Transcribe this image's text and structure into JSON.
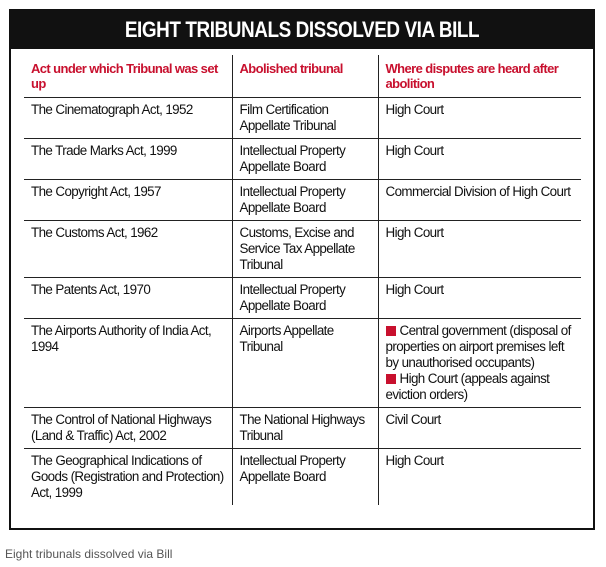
{
  "title": "EIGHT TRIBUNALS DISSOLVED VIA BILL",
  "headers": [
    "Act under which Tribunal was set up",
    "Abolished tribunal",
    "Where disputes are heard after abolition"
  ],
  "rows": [
    {
      "act": "The Cinematograph Act, 1952",
      "tribunal": "Film Certification Appellate Tribunal",
      "where": [
        "High Court"
      ]
    },
    {
      "act": "The Trade Marks Act, 1999",
      "tribunal": "Intellectual Property Appellate Board",
      "where": [
        "High Court"
      ]
    },
    {
      "act": "The Copyright Act, 1957",
      "tribunal": "Intellectual Property Appellate Board",
      "where": [
        "Commercial Division of High Court"
      ]
    },
    {
      "act": "The Customs Act, 1962",
      "tribunal": "Customs, Excise and Service Tax Appellate Tribunal",
      "where": [
        "High Court"
      ]
    },
    {
      "act": "The Patents Act, 1970",
      "tribunal": "Intellectual Property Appellate Board",
      "where": [
        "High Court"
      ]
    },
    {
      "act": "The Airports Authority of India Act, 1994",
      "tribunal": "Airports Appellate Tribunal",
      "where": [
        "Central government (disposal of properties on airport premises left by unauthorised occupants)",
        "High Court (appeals against eviction orders)"
      ],
      "bulleted": true
    },
    {
      "act": "The Control of National Highways (Land & Traffic) Act, 2002",
      "tribunal": "The National Highways Tribunal",
      "where": [
        "Civil Court"
      ]
    },
    {
      "act": "The Geographical Indications of Goods (Registration and Protection) Act, 1999",
      "tribunal": "Intellectual Property Appellate Board",
      "where": [
        "High Court"
      ]
    }
  ],
  "caption": "Eight tribunals dissolved via Bill",
  "colors": {
    "accent": "#c8102e",
    "title_bg": "#111111"
  }
}
